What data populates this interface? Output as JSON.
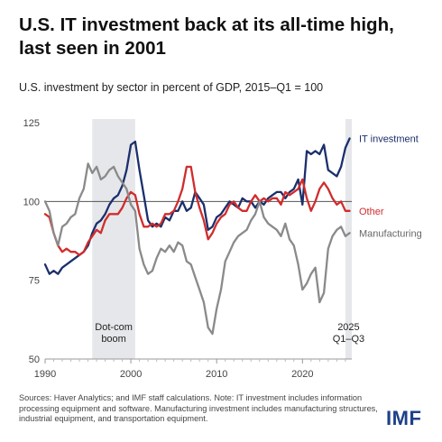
{
  "title": "U.S. IT investment back at its all-time high, last seen in 2001",
  "subtitle": "U.S. investment by sector in percent of GDP, 2015–Q1 = 100",
  "source_note": "Sources: Haver Analytics; and IMF staff calculations. Note: IT investment includes information processing equipment and software. Manufacturing investment includes manufacturing structures, industrial equipment, and transportation equipment.",
  "logo_text": "IMF",
  "chart_data": {
    "type": "line",
    "ylim": [
      50,
      125
    ],
    "xlim": [
      1990,
      2025.75
    ],
    "yticks": [
      50,
      75,
      100,
      125
    ],
    "xticks": [
      1990,
      2000,
      2010,
      2020
    ],
    "xtick_labels": [
      "1990",
      "2000",
      "2010",
      "2020"
    ],
    "baseline": 100,
    "grid": false,
    "shaded_periods": [
      {
        "label": "Dot-com boom",
        "label_lines": [
          "Dot-com",
          "boom"
        ],
        "start": 1995.5,
        "end": 2000.5,
        "color": "#e6e7ea"
      },
      {
        "label": "2025 Q1–Q3",
        "label_lines": [
          "2025",
          "Q1–Q3"
        ],
        "start": 2025.0,
        "end": 2025.75,
        "color": "#e6e7ea"
      }
    ],
    "series": [
      {
        "name": "IT investment",
        "color": "#1b2f6b",
        "label_color": "#1b2f6b",
        "x": [
          1990,
          1990.5,
          1991,
          1991.5,
          1992,
          1992.5,
          1993,
          1993.5,
          1994,
          1994.5,
          1995,
          1995.5,
          1996,
          1996.5,
          1997,
          1997.5,
          1998,
          1998.5,
          1999,
          1999.5,
          2000,
          2000.5,
          2001,
          2001.5,
          2002,
          2002.5,
          2003,
          2003.5,
          2004,
          2004.5,
          2005,
          2005.5,
          2006,
          2006.5,
          2007,
          2007.5,
          2008,
          2008.5,
          2009,
          2009.5,
          2010,
          2010.5,
          2011,
          2011.5,
          2012,
          2012.5,
          2013,
          2013.5,
          2014,
          2014.5,
          2015,
          2015.5,
          2016,
          2016.5,
          2017,
          2017.5,
          2018,
          2018.5,
          2019,
          2019.5,
          2020,
          2020.5,
          2021,
          2021.5,
          2022,
          2022.5,
          2023,
          2023.5,
          2024,
          2024.5,
          2025,
          2025.5
        ],
        "y": [
          80,
          77,
          78,
          77,
          79,
          80,
          81,
          82,
          83,
          84,
          86,
          90,
          93,
          94,
          96,
          99,
          101,
          102,
          105,
          110,
          118,
          119,
          110,
          102,
          94,
          92,
          93,
          92,
          95,
          94,
          97,
          97,
          100,
          97,
          98,
          103,
          101,
          99,
          91,
          92,
          95,
          96,
          98,
          100,
          99,
          98,
          101,
          100,
          100,
          98,
          100,
          99,
          101,
          102,
          103,
          103,
          101,
          103,
          104,
          107,
          99,
          116,
          115,
          116,
          115,
          118,
          110,
          109,
          108,
          111,
          117,
          120
        ]
      },
      {
        "name": "Other",
        "color": "#d12c2c",
        "label_color": "#d12c2c",
        "x": [
          1990,
          1990.5,
          1991,
          1991.5,
          1992,
          1992.5,
          1993,
          1993.5,
          1994,
          1994.5,
          1995,
          1995.5,
          1996,
          1996.5,
          1997,
          1997.5,
          1998,
          1998.5,
          1999,
          1999.5,
          2000,
          2000.5,
          2001,
          2001.5,
          2002,
          2002.5,
          2003,
          2003.5,
          2004,
          2004.5,
          2005,
          2005.5,
          2006,
          2006.5,
          2007,
          2007.5,
          2008,
          2008.5,
          2009,
          2009.5,
          2010,
          2010.5,
          2011,
          2011.5,
          2012,
          2012.5,
          2013,
          2013.5,
          2014,
          2014.5,
          2015,
          2015.5,
          2016,
          2016.5,
          2017,
          2017.5,
          2018,
          2018.5,
          2019,
          2019.5,
          2020,
          2020.5,
          2021,
          2021.5,
          2022,
          2022.5,
          2023,
          2023.5,
          2024,
          2024.5,
          2025,
          2025.5
        ],
        "y": [
          96,
          95,
          90,
          86,
          84,
          85,
          84,
          84,
          83,
          84,
          87,
          89,
          91,
          90,
          94,
          96,
          96,
          96,
          98,
          101,
          103,
          102,
          96,
          92,
          92,
          93,
          92,
          93,
          96,
          96,
          97,
          100,
          104,
          111,
          111,
          103,
          98,
          94,
          88,
          90,
          93,
          95,
          96,
          99,
          100,
          98,
          97,
          97,
          100,
          102,
          100,
          101,
          100,
          101,
          101,
          99,
          103,
          102,
          103,
          104,
          107,
          101,
          97,
          100,
          104,
          106,
          104,
          101,
          99,
          100,
          97,
          97
        ]
      },
      {
        "name": "Manufacturing",
        "color": "#8a8a8a",
        "label_color": "#666666",
        "x": [
          1990,
          1990.5,
          1991,
          1991.5,
          1992,
          1992.5,
          1993,
          1993.5,
          1994,
          1994.5,
          1995,
          1995.5,
          1996,
          1996.5,
          1997,
          1997.5,
          1998,
          1998.5,
          1999,
          1999.5,
          2000,
          2000.5,
          2001,
          2001.5,
          2002,
          2002.5,
          2003,
          2003.5,
          2004,
          2004.5,
          2005,
          2005.5,
          2006,
          2006.5,
          2007,
          2007.5,
          2008,
          2008.5,
          2009,
          2009.5,
          2010,
          2010.5,
          2011,
          2011.5,
          2012,
          2012.5,
          2013,
          2013.5,
          2014,
          2014.5,
          2015,
          2015.5,
          2016,
          2016.5,
          2017,
          2017.5,
          2018,
          2018.5,
          2019,
          2019.5,
          2020,
          2020.5,
          2021,
          2021.5,
          2022,
          2022.5,
          2023,
          2023.5,
          2024,
          2024.5,
          2025,
          2025.5
        ],
        "y": [
          100,
          97,
          90,
          86,
          92,
          93,
          95,
          96,
          101,
          104,
          112,
          109,
          111,
          107,
          108,
          110,
          111,
          108,
          106,
          104,
          99,
          97,
          85,
          80,
          77,
          78,
          82,
          85,
          84,
          86,
          84,
          87,
          86,
          81,
          80,
          76,
          72,
          68,
          60,
          58,
          66,
          72,
          81,
          84,
          87,
          89,
          90,
          91,
          94,
          96,
          100,
          95,
          93,
          92,
          91,
          89,
          93,
          88,
          86,
          80,
          72,
          74,
          77,
          79,
          68,
          71,
          85,
          89,
          91,
          92,
          89,
          90
        ]
      }
    ]
  }
}
